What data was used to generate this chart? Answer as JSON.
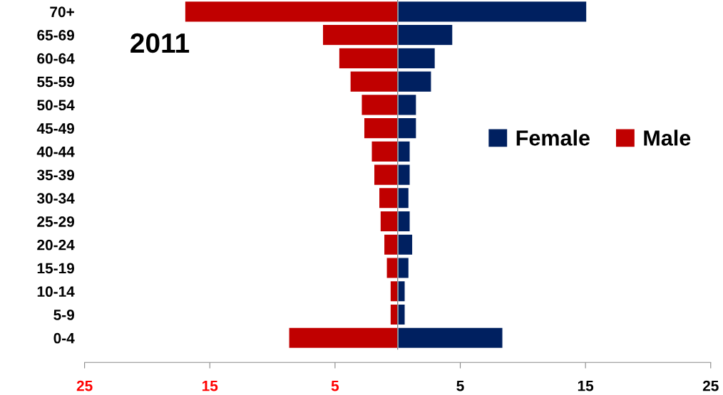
{
  "chart_data": {
    "type": "bar",
    "orientation": "horizontal",
    "stacked": true,
    "title": "2011",
    "categories": [
      "70+",
      "65-69",
      "60-64",
      "55-59",
      "50-54",
      "45-49",
      "40-44",
      "35-39",
      "30-34",
      "25-29",
      "20-24",
      "15-19",
      "10-14",
      "5-9",
      "0-4"
    ],
    "series": [
      {
        "name": "Female",
        "color": "#002060",
        "values": [
          15.1,
          4.4,
          3.0,
          2.7,
          1.5,
          1.5,
          1.0,
          1.0,
          0.9,
          1.0,
          1.2,
          0.9,
          0.6,
          0.6,
          8.4
        ]
      },
      {
        "name": "Male",
        "color": "#c00000",
        "values": [
          -17.0,
          -6.0,
          -4.7,
          -3.8,
          -2.9,
          -2.7,
          -2.1,
          -1.9,
          -1.5,
          -1.4,
          -1.1,
          -0.9,
          -0.6,
          -0.6,
          -8.7
        ]
      }
    ],
    "xlim": [
      -25,
      25
    ],
    "xticks": [
      {
        "value": -25,
        "label": "25"
      },
      {
        "value": -15,
        "label": "15"
      },
      {
        "value": -5,
        "label": "5"
      },
      {
        "value": 5,
        "label": "5"
      },
      {
        "value": 15,
        "label": "15"
      },
      {
        "value": 25,
        "label": "25"
      }
    ],
    "grid": false,
    "legend": "right"
  }
}
